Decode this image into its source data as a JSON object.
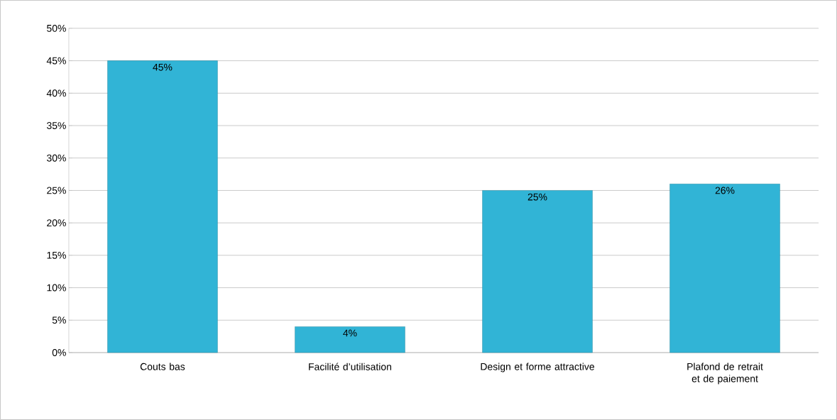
{
  "chart_data": {
    "type": "bar",
    "categories": [
      "Couts bas",
      "Facilité d’utilisation",
      "Design et forme attractive",
      "Plafond de retrait et de paiement"
    ],
    "values": [
      45,
      4,
      25,
      26
    ],
    "color": "#31b4d6",
    "value_labels": [
      "45%",
      "4%",
      "25%",
      "26%"
    ],
    "ylim": [
      0,
      50
    ],
    "yticks": [
      {
        "value": 0,
        "label": "0%"
      },
      {
        "value": 5,
        "label": "5%"
      },
      {
        "value": 10,
        "label": "10%"
      },
      {
        "value": 15,
        "label": "15%"
      },
      {
        "value": 20,
        "label": "20%"
      },
      {
        "value": 25,
        "label": "25%"
      },
      {
        "value": 30,
        "label": "30%"
      },
      {
        "value": 35,
        "label": "35%"
      },
      {
        "value": 40,
        "label": "40%"
      },
      {
        "value": 45,
        "label": "45%"
      },
      {
        "value": 50,
        "label": "50%"
      }
    ],
    "grid": "y"
  }
}
